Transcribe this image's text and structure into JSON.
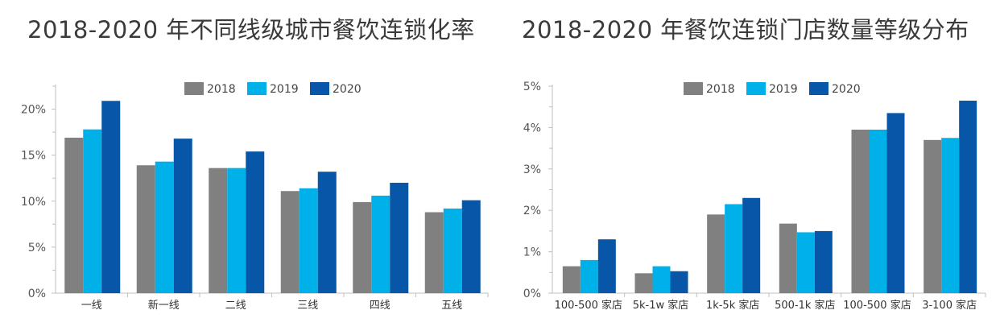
{
  "colors": {
    "2018": "#808080",
    "2019": "#00b0e8",
    "2020": "#0856a8",
    "axis": "#bfbfbf"
  },
  "chart_data": [
    {
      "type": "bar",
      "title": "2018-2020 年不同线级城市餐饮连锁化率",
      "categories": [
        "一线",
        "新一线",
        "二线",
        "三线",
        "四线",
        "五线"
      ],
      "series": [
        {
          "name": "2018",
          "values": [
            16.9,
            13.9,
            13.6,
            11.1,
            9.9,
            8.8
          ]
        },
        {
          "name": "2019",
          "values": [
            17.8,
            14.3,
            13.6,
            11.4,
            10.6,
            9.2
          ]
        },
        {
          "name": "2020",
          "values": [
            20.9,
            16.8,
            15.4,
            13.2,
            12.0,
            10.1
          ]
        }
      ],
      "yticks": [
        "0%",
        "5%",
        "10%",
        "15%",
        "20%"
      ],
      "ylim": [
        0,
        22.5
      ],
      "legend": "top",
      "grid": false
    },
    {
      "type": "bar",
      "title": "2018-2020 年餐饮连锁门店数量等级分布",
      "categories": [
        "100-500 家店",
        "5k-1w 家店",
        "1k-5k 家店",
        "500-1k 家店",
        "100-500 家店",
        "3-100 家店"
      ],
      "series": [
        {
          "name": "2018",
          "values": [
            0.65,
            0.48,
            1.9,
            1.68,
            3.95,
            3.7
          ]
        },
        {
          "name": "2019",
          "values": [
            0.8,
            0.65,
            2.15,
            1.47,
            3.95,
            3.75
          ]
        },
        {
          "name": "2020",
          "values": [
            1.3,
            0.53,
            2.3,
            1.5,
            4.35,
            4.65
          ]
        }
      ],
      "yticks": [
        "0%",
        "1%",
        "2%",
        "3%",
        "4%",
        "5%"
      ],
      "ylim": [
        0,
        5
      ],
      "legend": "top",
      "grid": false
    }
  ]
}
